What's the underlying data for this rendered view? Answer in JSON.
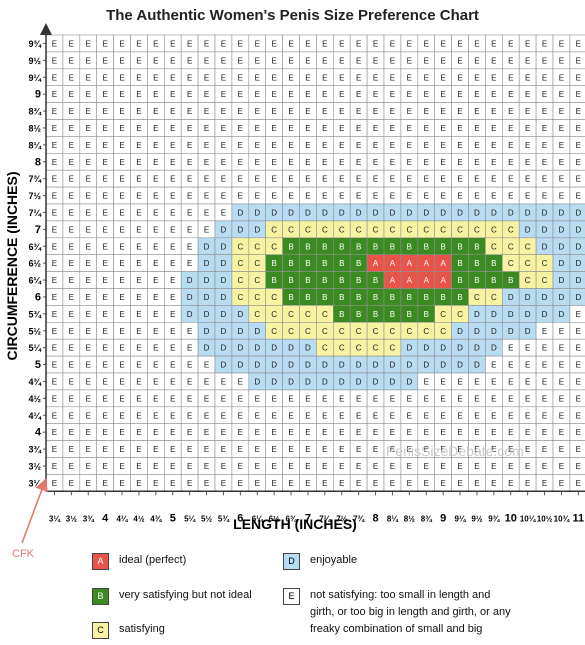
{
  "chart_data": {
    "type": "heatmap",
    "title": "The Authentic Women's Penis Size Preference Chart",
    "xlabel": "LENGTH  (INCHES)",
    "ylabel": "CIRCUMFERENCE (INCHES)",
    "x_tick_labels": [
      "3¼",
      "3½",
      "3¾",
      "4",
      "4¼",
      "4½",
      "4¾",
      "5",
      "5¼",
      "5½",
      "5¾",
      "6",
      "6¼",
      "6½",
      "6¾",
      "7",
      "7¼",
      "7½",
      "7¾",
      "8",
      "8¼",
      "8½",
      "8¾",
      "9",
      "9¼",
      "9½",
      "9¾",
      "10",
      "10¼",
      "10½",
      "10¾",
      "11"
    ],
    "y_tick_labels": [
      "3¼",
      "3½",
      "3¾",
      "4",
      "4¼",
      "4½",
      "4¾",
      "5",
      "5¼",
      "5½",
      "5¾",
      "6",
      "6¼",
      "6½",
      "6¾",
      "7",
      "7¼",
      "7½",
      "7¾",
      "8",
      "8¼",
      "8½",
      "8¾",
      "9",
      "9¼",
      "9½",
      "9¾"
    ],
    "grid_rows_top_to_bottom": [
      "EEEEEEEEEEEEEEEEEEEEEEEEEEEEEEEE",
      "EEEEEEEEEEEEEEEEEEEEEEEEEEEEEEEE",
      "EEEEEEEEEEEEEEEEEEEEEEEEEEEEEEEE",
      "EEEEEEEEEEEEEEEEEEEEEEEEEEEEEEEE",
      "EEEEEEEEEEEEEEEEEEEEEEEEEEEEEEEE",
      "EEEEEEEEEEEEEEEEEEEEEEEEEEEEEEEE",
      "EEEEEEEEEEEEEEEEEEEEEEEEEEEEEEEE",
      "EEEEEEEEEEEEEEEEEEEEEEEEEEEEEEEE",
      "EEEEEEEEEEEEEEEEEEEEEEEEEEEEEEEE",
      "EEEEEEEEEEEEEEEEEEEEEEEEEEEEEEEE",
      "EEEEEEEEEEEDDDDDDDDDDDDDDDDDDDDD",
      "EEEEEEEEEEDDDCCCCCCCCCCCCCCCDDDD",
      "EEEEEEEEEDDCCCBBBBBBBBBBBBCCCDDD",
      "EEEEEEEEEDDCCBBBBBBAAAAABBBCCCDD",
      "EEEEEEEEDDDCCBBBBBBBAAAABBBBCCDD",
      "EEEEEEEEDDDCCCBBBBBBBBBBBCCDDDDD",
      "EEEEEEEEDDDDCCCCCBBBBBBCCDDDDDDE",
      "EEEEEEEEEDDDDCCCCCCCCCCCDDDDDEEE",
      "EEEEEEEEEDDDDDDDCCCCCDDDDDDEEEEE",
      "EEEEEEEEEEDDDDDDDDDDDDDDDDEEEEEE",
      "EEEEEEEEEEEEDDDDDDDDDDEEEEEEEEEE",
      "EEEEEEEEEEEEEEEEEEEEEEEEEEEEEEEE",
      "EEEEEEEEEEEEEEEEEEEEEEEEEEEEEEEE",
      "EEEEEEEEEEEEEEEEEEEEEEEEEEEEEEEE",
      "EEEEEEEEEEEEEEEEEEEEEEEEEEEEEEEE",
      "EEEEEEEEEEEEEEEEEEEEEEEEEEEEEEEE",
      "EEEEEEEEEEEEEEEEEEEEEEEEEEEEEEEE"
    ],
    "categories": {
      "A": "ideal (perfect)",
      "B": "very satisfying but not ideal",
      "C": "satisfying",
      "D": "enjoyable",
      "E": "not satisfying: too small in length and girth, or too big in length and girth, or any freaky combination of small and big"
    },
    "colors": {
      "A": "#e8534a",
      "B": "#3b8a22",
      "C": "#f7f3a3",
      "D": "#b8dcf2",
      "E": "#ffffff"
    },
    "grid": true,
    "legend_position": "bottom"
  },
  "watermark": "PenisSizeDebate.com",
  "credit": "CFK",
  "legend": [
    {
      "letter": "A",
      "text": "ideal (perfect)"
    },
    {
      "letter": "B",
      "text": "very satisfying but not ideal"
    },
    {
      "letter": "C",
      "text": "satisfying"
    },
    {
      "letter": "D",
      "text": "enjoyable"
    },
    {
      "letter": "E",
      "text_lines": [
        "not satisfying: too small in length and",
        "girth, or too big in length and girth, or any",
        "freaky combination of small and big"
      ]
    }
  ]
}
